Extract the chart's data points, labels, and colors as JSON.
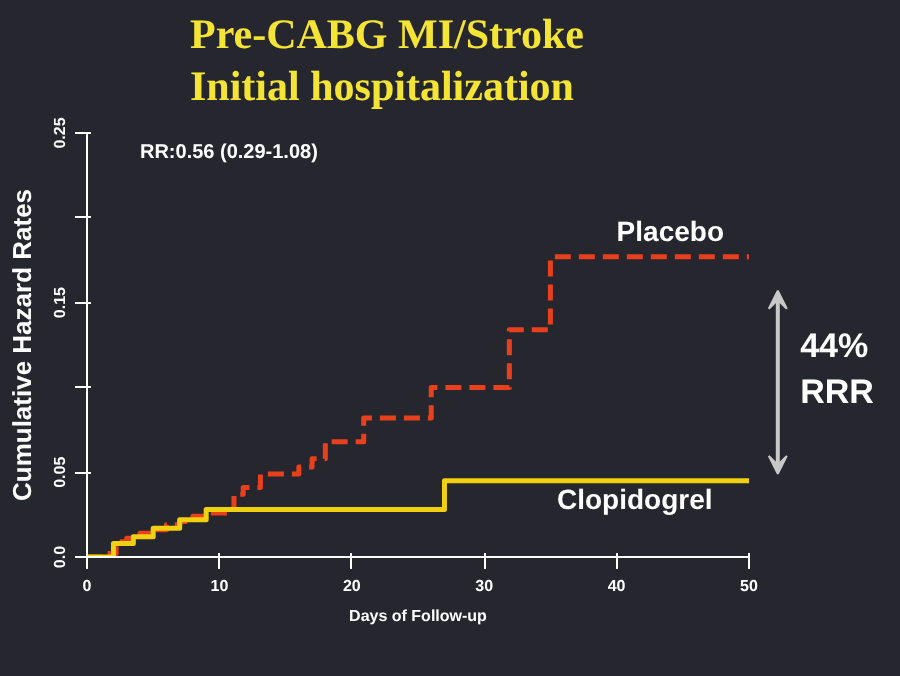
{
  "chart_data": {
    "type": "step",
    "title": "Pre-CABG MI/Stroke",
    "subtitle": "Initial hospitalization",
    "xlabel": "Days of Follow-up",
    "ylabel": "Cumulative Hazard Rates",
    "xlim": [
      0,
      50
    ],
    "xticks": [
      0,
      10,
      20,
      30,
      40,
      50
    ],
    "ylim": [
      0,
      0.25
    ],
    "yticks": [
      {
        "value": 0,
        "label": "0.0"
      },
      0.05,
      {
        "value": 0.1,
        "label": null
      },
      0.15,
      {
        "value": 0.2,
        "label": null
      },
      0.25
    ],
    "grid": false,
    "marker": "none",
    "series": [
      {
        "name": "Placebo",
        "color": "#e8401c",
        "line_style": "dashed",
        "x": [
          0,
          1.5,
          2.2,
          3,
          4,
          5,
          6,
          7,
          8,
          9,
          11.1,
          11.8,
          13.1,
          16,
          17,
          18,
          20.9,
          26,
          31.9,
          35,
          50
        ],
        "values": [
          0,
          0.002,
          0.009,
          0.011,
          0.014,
          0.016,
          0.019,
          0.021,
          0.024,
          0.026,
          0.037,
          0.041,
          0.049,
          0.053,
          0.058,
          0.068,
          0.082,
          0.1,
          0.134,
          0.177,
          0.177
        ]
      },
      {
        "name": "Clopidogrel",
        "color": "#f0d010",
        "line_style": "solid",
        "x": [
          0,
          2,
          3.5,
          5,
          7,
          9,
          27,
          50
        ],
        "values": [
          0,
          0.008,
          0.012,
          0.017,
          0.022,
          0.028,
          0.045,
          0.045
        ]
      }
    ],
    "annotations": [
      "RR:0.56 (0.29-1.08)",
      "44%\nRRR"
    ]
  }
}
